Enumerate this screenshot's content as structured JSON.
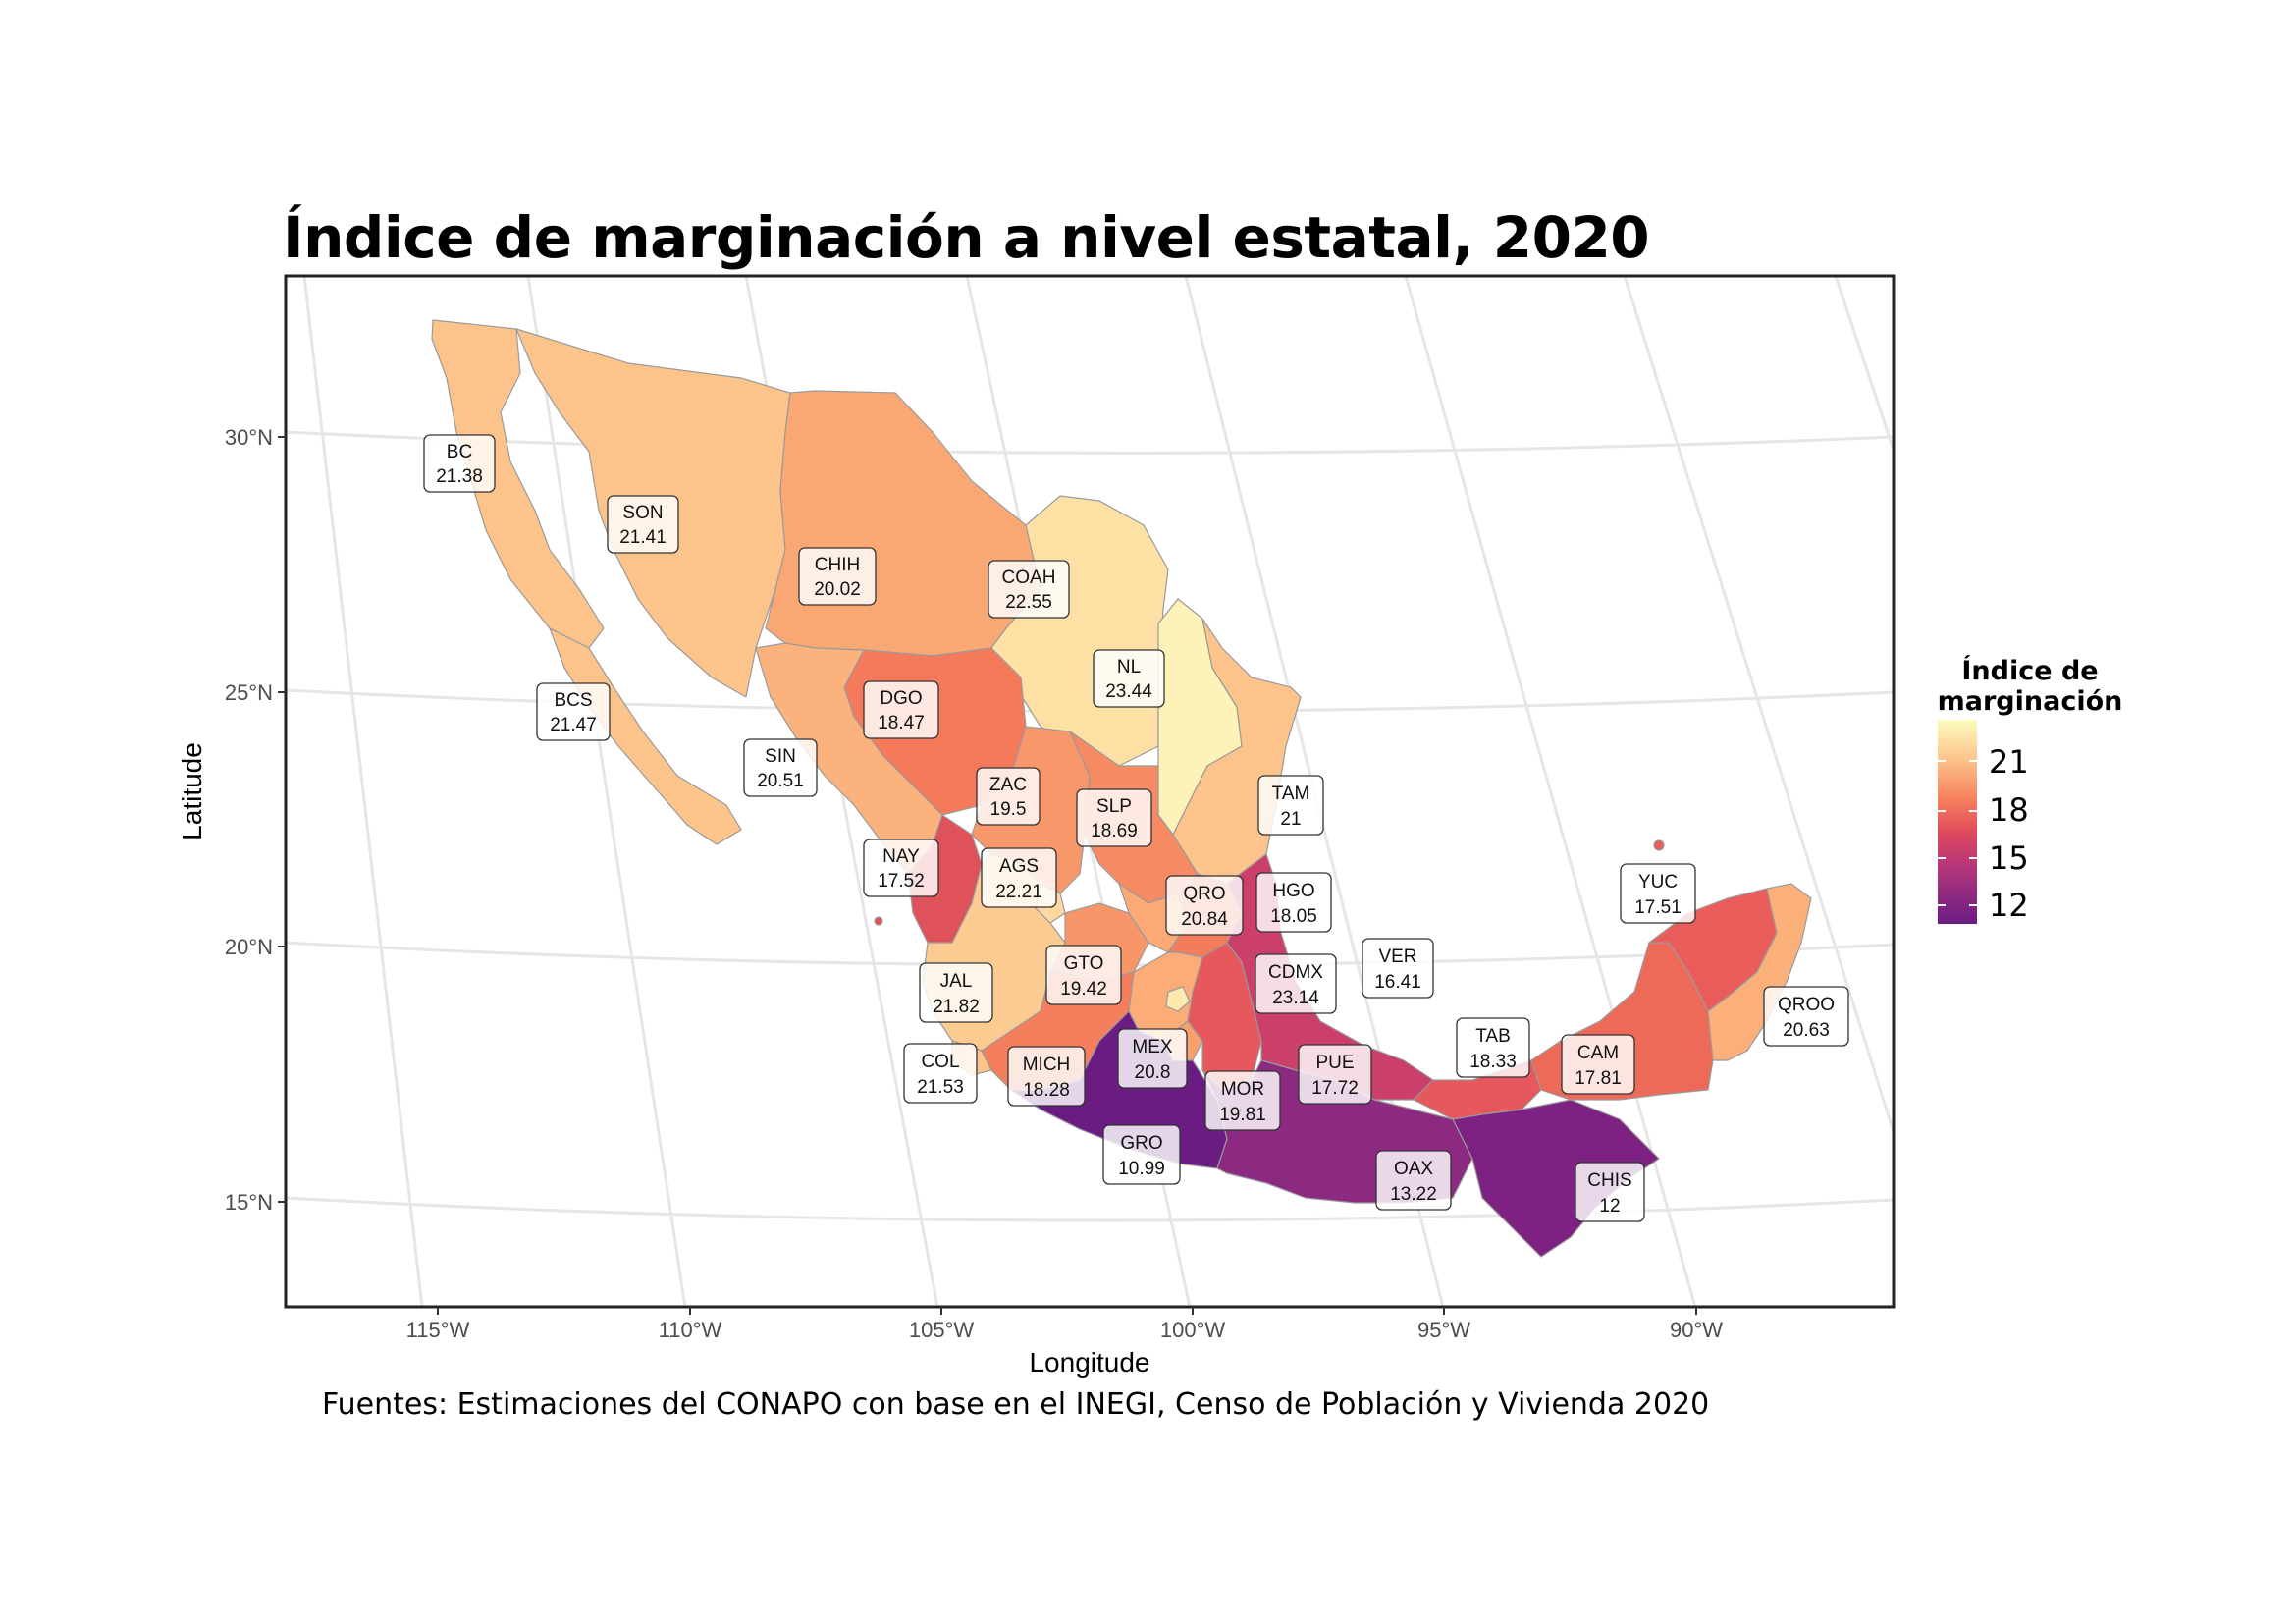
{
  "title": "Índice de marginación a nivel estatal, 2020",
  "source": "Fuentes: Estimaciones del CONAPO con base en el INEGI, Censo de Población y Vivienda 2020",
  "axes": {
    "xlabel": "Longitude",
    "ylabel": "Latitude",
    "x_ticks": [
      "115°W",
      "110°W",
      "105°W",
      "100°W",
      "95°W",
      "90°W"
    ],
    "y_ticks": [
      "30°N",
      "25°N",
      "20°N",
      "15°N"
    ]
  },
  "legend": {
    "title_line1": "Índice de",
    "title_line2": "marginación",
    "ticks": [
      "21",
      "18",
      "15",
      "12"
    ],
    "colors": [
      "#fcfdbf",
      "#fdc88f",
      "#f8845e",
      "#df4a5c",
      "#b5367a",
      "#8c2981",
      "#6a1c83"
    ]
  },
  "chart_data": {
    "type": "choropleth",
    "title": "Índice de marginación a nivel estatal, 2020",
    "xlabel": "Longitude",
    "ylabel": "Latitude",
    "value_range": [
      10.99,
      23.44
    ],
    "states": [
      {
        "abbr": "BC",
        "value": "21.38"
      },
      {
        "abbr": "SON",
        "value": "21.41"
      },
      {
        "abbr": "CHIH",
        "value": "20.02"
      },
      {
        "abbr": "COAH",
        "value": "22.55"
      },
      {
        "abbr": "NL",
        "value": "23.44"
      },
      {
        "abbr": "BCS",
        "value": "21.47"
      },
      {
        "abbr": "DGO",
        "value": "18.47"
      },
      {
        "abbr": "SIN",
        "value": "20.51"
      },
      {
        "abbr": "TAM",
        "value": "21"
      },
      {
        "abbr": "ZAC",
        "value": "19.5"
      },
      {
        "abbr": "SLP",
        "value": "18.69"
      },
      {
        "abbr": "NAY",
        "value": "17.52"
      },
      {
        "abbr": "AGS",
        "value": "22.21"
      },
      {
        "abbr": "QRO",
        "value": "20.84"
      },
      {
        "abbr": "HGO",
        "value": "18.05"
      },
      {
        "abbr": "YUC",
        "value": "17.51"
      },
      {
        "abbr": "VER",
        "value": "16.41"
      },
      {
        "abbr": "GTO",
        "value": "19.42"
      },
      {
        "abbr": "CDMX",
        "value": "23.14"
      },
      {
        "abbr": "JAL",
        "value": "21.82"
      },
      {
        "abbr": "QROO",
        "value": "20.63"
      },
      {
        "abbr": "TAB",
        "value": "18.33"
      },
      {
        "abbr": "COL",
        "value": "21.53"
      },
      {
        "abbr": "MICH",
        "value": "18.28"
      },
      {
        "abbr": "MEX",
        "value": "20.8"
      },
      {
        "abbr": "PUE",
        "value": "17.72"
      },
      {
        "abbr": "CAM",
        "value": "17.81"
      },
      {
        "abbr": "MOR",
        "value": "19.81"
      },
      {
        "abbr": "GRO",
        "value": "10.99"
      },
      {
        "abbr": "OAX",
        "value": "13.22"
      },
      {
        "abbr": "CHIS",
        "value": "12"
      }
    ]
  }
}
